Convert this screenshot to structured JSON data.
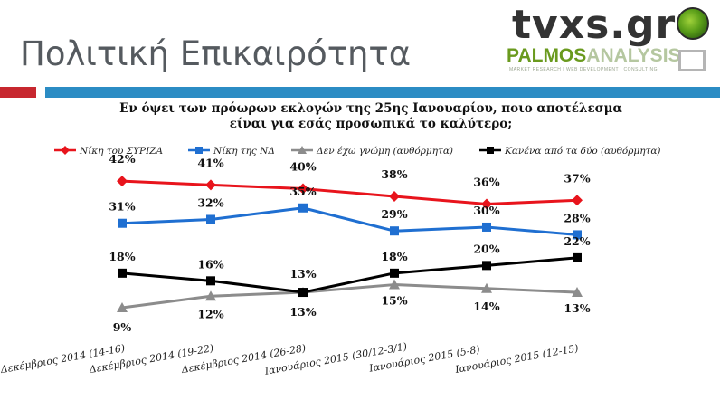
{
  "header": {
    "title": "Πολιτική Επικαιρότητα",
    "logo_tvxs": "tvxs.gr",
    "logo_palmos_1": "PALMOS",
    "logo_palmos_2": "ANALYSIS",
    "logo_tagline": "MARKET RESEARCH | WEB DEVELOPMENT | CONSULTING"
  },
  "colors": {
    "red_bar": "#c7272f",
    "blue_bar": "#2b8cc4"
  },
  "chart_data": {
    "type": "line",
    "title": "Εν όψει των πρόωρων εκλογών της 25ης Ιανουαρίου, ποιο αποτέλεσμα είναι για εσάς προσωπικά το καλύτερο;",
    "title_lines": [
      "Εν όψει των πρόωρων εκλογών της 25ης Ιανουαρίου, ποιο αποτέλεσμα",
      "είναι για εσάς προσωπικά το καλύτερο;"
    ],
    "categories": [
      "Δεκέμβριος 2014 (14-16)",
      "Δεκέμβριος 2014 (19-22)",
      "Δεκέμβριος 2014 (26-28)",
      "Ιανουάριος 2015 (30/12-3/1)",
      "Ιανουάριος 2015 (5-8)",
      "Ιανουάριος 2015 (12-15)"
    ],
    "series": [
      {
        "name": "Νίκη του ΣΥΡΙΖΑ",
        "color": "#e8141c",
        "marker": "diamond",
        "values": [
          42,
          41,
          40,
          38,
          36,
          37
        ],
        "labels": [
          "42%",
          "41%",
          "40%",
          "38%",
          "36%",
          "37%"
        ]
      },
      {
        "name": "Νίκη της ΝΔ",
        "color": "#1f6fd1",
        "marker": "square",
        "values": [
          31,
          32,
          35,
          29,
          30,
          28
        ],
        "labels": [
          "31%",
          "32%",
          "35%",
          "29%",
          "30%",
          "28%"
        ]
      },
      {
        "name": "Δεν έχω γνώμη (αυθόρμητα)",
        "color": "#8c8c8c",
        "marker": "triangle",
        "values": [
          9,
          12,
          13,
          15,
          14,
          13
        ],
        "labels": [
          "9%",
          "12%",
          "13%",
          "15%",
          "14%",
          "13%"
        ]
      },
      {
        "name": "Κανένα από τα δύο (αυθόρμητα)",
        "color": "#000000",
        "marker": "square",
        "values": [
          18,
          16,
          13,
          18,
          20,
          22
        ],
        "labels": [
          "18%",
          "16%",
          "13%",
          "18%",
          "20%",
          "22%"
        ]
      }
    ],
    "legend_position": "top",
    "grid": false,
    "axes_visible": false
  }
}
